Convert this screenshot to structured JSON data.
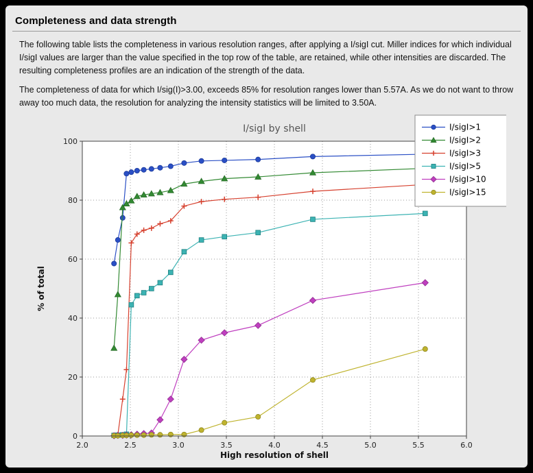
{
  "page": {
    "title": "Completeness and data strength",
    "paragraph1": "The following table lists the completeness in various resolution ranges, after applying a I/sigI cut. Miller indices for which individual I/sigI values are larger than the value specified in the top row of the table, are retained, while other intensities are discarded. The resulting completeness profiles are an indication of the strength of the data.",
    "paragraph2": "The completeness of data for which I/sig(I)>3.00, exceeds  85% for resolution ranges lower than 5.57A. As we do not want to throw away too much data, the resolution for analyzing the intensity statistics will be limited to 3.50A."
  },
  "chart_data": {
    "type": "line",
    "title": "I/sigI by shell",
    "xlabel": "High resolution of shell",
    "ylabel": "% of total",
    "xlim": [
      2.0,
      6.0
    ],
    "ylim": [
      0,
      100
    ],
    "xticks": [
      2.0,
      2.5,
      3.0,
      3.5,
      4.0,
      4.5,
      5.0,
      5.5,
      6.0
    ],
    "yticks": [
      0,
      20,
      40,
      60,
      80,
      100
    ],
    "grid": true,
    "legend_position": "upper right",
    "x": [
      2.33,
      2.37,
      2.42,
      2.46,
      2.51,
      2.57,
      2.64,
      2.72,
      2.81,
      2.92,
      3.06,
      3.24,
      3.48,
      3.83,
      4.4,
      5.57
    ],
    "series": [
      {
        "name": "I/sigI>1",
        "color": "#2a4fc5",
        "edge": "#1c3a99",
        "marker": "circle",
        "values": [
          58.5,
          66.5,
          74.0,
          89.0,
          89.5,
          90.0,
          90.3,
          90.6,
          91.0,
          91.5,
          92.6,
          93.3,
          93.5,
          93.8,
          94.8,
          95.6
        ]
      },
      {
        "name": "I/sigI>2",
        "color": "#338a33",
        "edge": "#256b25",
        "marker": "triangle",
        "values": [
          29.8,
          48.0,
          77.5,
          78.8,
          79.8,
          81.3,
          81.8,
          82.2,
          82.6,
          83.3,
          85.5,
          86.4,
          87.3,
          87.9,
          89.3,
          90.8
        ]
      },
      {
        "name": "I/sigI>3",
        "color": "#d6402e",
        "edge": "#a52f21",
        "marker": "plus",
        "values": [
          0.2,
          0.4,
          12.5,
          22.5,
          65.5,
          68.5,
          69.8,
          70.5,
          72.0,
          73.0,
          78.0,
          79.5,
          80.3,
          81.0,
          83.0,
          85.3
        ]
      },
      {
        "name": "I/sigI>5",
        "color": "#3cb3b3",
        "edge": "#1f8080",
        "marker": "square",
        "values": [
          0.2,
          0.3,
          0.4,
          0.6,
          44.5,
          47.6,
          48.6,
          50.0,
          52.0,
          55.5,
          62.5,
          66.5,
          67.6,
          69.0,
          73.5,
          75.5
        ]
      },
      {
        "name": "I/sigI>10",
        "color": "#bf3fbf",
        "edge": "#8f2d8f",
        "marker": "diamond",
        "values": [
          0.1,
          0.2,
          0.2,
          0.3,
          0.4,
          0.6,
          0.8,
          1.0,
          5.5,
          12.5,
          26.0,
          32.5,
          35.0,
          37.5,
          46.0,
          52.0
        ]
      },
      {
        "name": "I/sigI>15",
        "color": "#bfb32e",
        "edge": "#8f8820",
        "marker": "circle",
        "values": [
          0.1,
          0.1,
          0.2,
          0.2,
          0.3,
          0.3,
          0.3,
          0.4,
          0.4,
          0.5,
          0.5,
          2.0,
          4.5,
          6.5,
          19.0,
          29.5
        ]
      }
    ],
    "colors": {
      "plot_background": "#ffffff",
      "figure_background": "#e9e9e9",
      "grid": "#999999",
      "frame": "#444444",
      "title": "#555555",
      "tick_label": "#222222",
      "axis_label": "#111111",
      "legend_border": "#8a8a8a"
    }
  }
}
